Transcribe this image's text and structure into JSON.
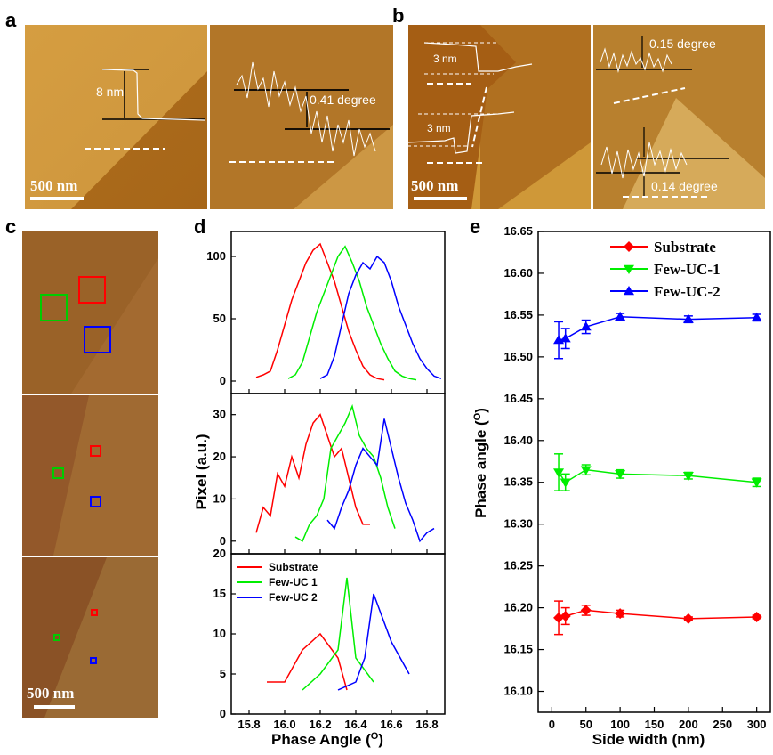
{
  "panel_labels": {
    "a": "a",
    "b": "b",
    "c": "c",
    "d": "d",
    "e": "e"
  },
  "panel_a": {
    "step_label": "8 nm",
    "phase_label": "0.41 degree",
    "scale_bar": "500 nm"
  },
  "panel_b": {
    "step_top": "3 nm",
    "step_bottom": "3 nm",
    "phase_top": "0.15 degree",
    "phase_bottom": "0.14 degree",
    "scale_bar": "500 nm"
  },
  "panel_c": {
    "scale_bar": "500 nm"
  },
  "colors": {
    "substrate": "#ff0000",
    "few_uc_1": "#00ee00",
    "few_uc_2": "#0000ff",
    "afm_dark": "#8a4a10",
    "afm_light": "#d9a04a"
  },
  "panel_d": {
    "xlabel": "Phase Angle (O)",
    "xlabel_main": "Phase Angle (",
    "xlabel_sup": "O",
    "xlabel_end": ")",
    "ylabel": "Pixel (a.u.)",
    "xticks": [
      "15.8",
      "16.0",
      "16.2",
      "16.4",
      "16.6",
      "16.8"
    ],
    "top_yticks": [
      "0",
      "50",
      "100"
    ],
    "mid_yticks": [
      "0",
      "10",
      "20",
      "30"
    ],
    "bot_yticks": [
      "0",
      "5",
      "10",
      "15",
      "20"
    ],
    "legend": [
      "Substrate",
      "Few-UC 1",
      "Few-UC 2"
    ]
  },
  "panel_e": {
    "xlabel": "Side width (nm)",
    "ylabel_main": "Phase  angle (",
    "ylabel_sup": "O",
    "ylabel_end": ")",
    "xticks": [
      "0",
      "50",
      "100",
      "150",
      "200",
      "250",
      "300"
    ],
    "yticks": [
      "16.10",
      "16.15",
      "16.20",
      "16.25",
      "16.30",
      "16.35",
      "16.40",
      "16.45",
      "16.50",
      "16.55",
      "16.60",
      "16.65"
    ],
    "legend": [
      "Substrate",
      "Few-UC-1",
      "Few-UC-2"
    ]
  },
  "chart_data": [
    {
      "type": "line",
      "panel": "d-top",
      "xlim": [
        15.7,
        16.9
      ],
      "ylim": [
        -10,
        120
      ],
      "series": [
        {
          "name": "Substrate",
          "color": "#ff0000",
          "x": [
            15.84,
            15.88,
            15.92,
            15.96,
            16.0,
            16.04,
            16.08,
            16.12,
            16.16,
            16.2,
            16.24,
            16.28,
            16.32,
            16.36,
            16.4,
            16.44,
            16.48,
            16.52,
            16.56
          ],
          "values": [
            3,
            5,
            8,
            25,
            45,
            65,
            80,
            95,
            105,
            110,
            95,
            80,
            60,
            40,
            25,
            12,
            5,
            2,
            1
          ]
        },
        {
          "name": "Few-UC 1",
          "color": "#00ee00",
          "x": [
            16.02,
            16.06,
            16.1,
            16.14,
            16.18,
            16.22,
            16.26,
            16.3,
            16.34,
            16.38,
            16.42,
            16.46,
            16.5,
            16.54,
            16.58,
            16.62,
            16.66,
            16.7,
            16.74
          ],
          "values": [
            2,
            5,
            15,
            35,
            55,
            70,
            85,
            100,
            108,
            95,
            80,
            60,
            45,
            30,
            18,
            8,
            4,
            2,
            1
          ]
        },
        {
          "name": "Few-UC 2",
          "color": "#0000ff",
          "x": [
            16.2,
            16.24,
            16.28,
            16.32,
            16.36,
            16.4,
            16.44,
            16.48,
            16.52,
            16.56,
            16.6,
            16.64,
            16.68,
            16.72,
            16.76,
            16.8,
            16.84,
            16.88
          ],
          "values": [
            2,
            5,
            20,
            45,
            70,
            85,
            95,
            90,
            100,
            95,
            80,
            60,
            45,
            30,
            18,
            10,
            4,
            2
          ]
        }
      ]
    },
    {
      "type": "line",
      "panel": "d-middle",
      "xlim": [
        15.7,
        16.9
      ],
      "ylim": [
        -3,
        35
      ],
      "series": [
        {
          "name": "Substrate",
          "color": "#ff0000",
          "x": [
            15.84,
            15.88,
            15.92,
            15.96,
            16.0,
            16.04,
            16.08,
            16.12,
            16.16,
            16.2,
            16.24,
            16.28,
            16.32,
            16.36,
            16.4,
            16.44,
            16.48
          ],
          "values": [
            2,
            8,
            6,
            16,
            13,
            20,
            15,
            23,
            28,
            30,
            25,
            20,
            22,
            15,
            8,
            4,
            4
          ]
        },
        {
          "name": "Few-UC 1",
          "color": "#00ee00",
          "x": [
            16.06,
            16.1,
            16.14,
            16.18,
            16.22,
            16.26,
            16.3,
            16.34,
            16.38,
            16.42,
            16.46,
            16.5,
            16.54,
            16.58,
            16.62
          ],
          "values": [
            1,
            0,
            4,
            6,
            10,
            22,
            25,
            28,
            32,
            25,
            22,
            20,
            15,
            8,
            3
          ]
        },
        {
          "name": "Few-UC 2",
          "color": "#0000ff",
          "x": [
            16.24,
            16.28,
            16.32,
            16.36,
            16.4,
            16.44,
            16.48,
            16.52,
            16.56,
            16.6,
            16.64,
            16.68,
            16.72,
            16.76,
            16.8,
            16.84
          ],
          "values": [
            5,
            3,
            8,
            12,
            18,
            22,
            20,
            18,
            29,
            22,
            15,
            9,
            5,
            0,
            2,
            3
          ]
        }
      ]
    },
    {
      "type": "line",
      "panel": "d-bottom",
      "xlim": [
        15.7,
        16.9
      ],
      "ylim": [
        0,
        20
      ],
      "series": [
        {
          "name": "Substrate",
          "color": "#ff0000",
          "x": [
            15.9,
            16.0,
            16.1,
            16.2,
            16.3,
            16.35
          ],
          "values": [
            4,
            4,
            8,
            10,
            7,
            3
          ]
        },
        {
          "name": "Few-UC 1",
          "color": "#00ee00",
          "x": [
            16.1,
            16.2,
            16.3,
            16.35,
            16.4,
            16.5
          ],
          "values": [
            3,
            5,
            8,
            17,
            7,
            4
          ]
        },
        {
          "name": "Few-UC 2",
          "color": "#0000ff",
          "x": [
            16.3,
            16.4,
            16.45,
            16.5,
            16.6,
            16.7
          ],
          "values": [
            3,
            4,
            7,
            15,
            9,
            5
          ]
        }
      ]
    },
    {
      "type": "line",
      "panel": "e",
      "xlabel": "Side width (nm)",
      "ylabel": "Phase angle (O)",
      "xlim": [
        -20,
        320
      ],
      "ylim": [
        16.075,
        16.65
      ],
      "series": [
        {
          "name": "Substrate",
          "color": "#ff0000",
          "marker": "diamond",
          "x": [
            10,
            20,
            50,
            100,
            200,
            300
          ],
          "values": [
            16.188,
            16.19,
            16.197,
            16.193,
            16.187,
            16.189
          ],
          "err": [
            0.02,
            0.01,
            0.006,
            0.004,
            0.002,
            0.002
          ]
        },
        {
          "name": "Few-UC-1",
          "color": "#00ee00",
          "marker": "triangle-down",
          "x": [
            10,
            20,
            50,
            100,
            200,
            300
          ],
          "values": [
            16.362,
            16.35,
            16.365,
            16.36,
            16.358,
            16.35
          ],
          "err": [
            0.022,
            0.01,
            0.006,
            0.005,
            0.004,
            0.005
          ]
        },
        {
          "name": "Few-UC-2",
          "color": "#0000ff",
          "marker": "triangle-up",
          "x": [
            10,
            20,
            50,
            100,
            200,
            300
          ],
          "values": [
            16.52,
            16.522,
            16.536,
            16.548,
            16.545,
            16.547
          ],
          "err": [
            0.022,
            0.012,
            0.008,
            0.004,
            0.004,
            0.004
          ]
        }
      ]
    }
  ]
}
